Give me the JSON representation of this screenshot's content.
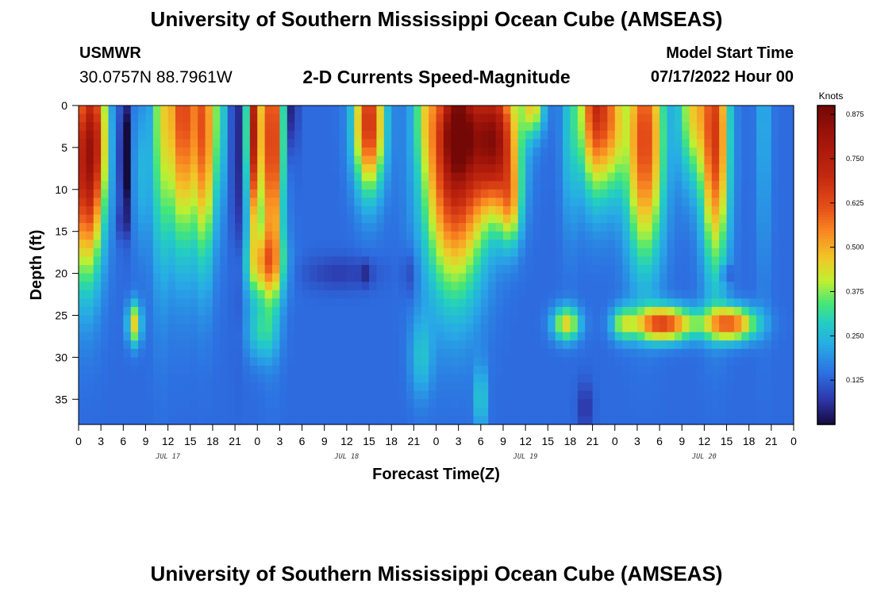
{
  "header": {
    "title": "University of Southern Mississippi Ocean Cube (AMSEAS)",
    "station": "USMWR",
    "coordinates": "30.0757N  88.7961W",
    "subtitle": "2-D Currents Speed-Magnitude",
    "model_start_label": "Model Start Time",
    "model_start_value": "07/17/2022 Hour 00"
  },
  "footer": {
    "title": "University of Southern Mississippi Ocean Cube (AMSEAS)"
  },
  "chart_data": {
    "type": "heatmap",
    "title": "2-D Currents Speed-Magnitude",
    "xlabel": "Forecast Time(Z)",
    "ylabel": "Depth (ft)",
    "xlim": [
      0,
      96
    ],
    "ylim": [
      38,
      0
    ],
    "x_ticks": [
      0,
      3,
      6,
      9,
      12,
      15,
      18,
      21,
      24,
      27,
      30,
      33,
      36,
      39,
      42,
      45,
      48,
      51,
      54,
      57,
      60,
      63,
      66,
      69,
      72,
      75,
      78,
      81,
      84,
      87,
      90,
      93,
      96
    ],
    "x_tick_labels": [
      "0",
      "3",
      "6",
      "9",
      "12",
      "15",
      "18",
      "21",
      "0",
      "3",
      "6",
      "9",
      "12",
      "15",
      "18",
      "21",
      "0",
      "3",
      "6",
      "9",
      "12",
      "15",
      "18",
      "21",
      "0",
      "3",
      "6",
      "9",
      "12",
      "15",
      "18",
      "21",
      "0"
    ],
    "y_ticks": [
      0,
      5,
      10,
      15,
      20,
      25,
      30,
      35
    ],
    "day_labels": [
      {
        "hour": 12,
        "label": "JUL 17"
      },
      {
        "hour": 36,
        "label": "JUL 18"
      },
      {
        "hour": 60,
        "label": "JUL 19"
      },
      {
        "hour": 84,
        "label": "JUL 20"
      }
    ],
    "colorbar": {
      "units": "Knots",
      "min": 0,
      "max": 0.9,
      "tick_values": [
        0.125,
        0.25,
        0.375,
        0.5,
        0.625,
        0.75,
        0.875
      ],
      "tick_labels": [
        "0.125",
        "0.250",
        "0.375",
        "0.500",
        "0.625",
        "0.750",
        "0.875"
      ]
    },
    "features": [
      {
        "t": 1,
        "d": 7,
        "st": 2.2,
        "sd": 13,
        "v": 0.6
      },
      {
        "t": 2.5,
        "d": 3,
        "st": 1.5,
        "sd": 9,
        "v": 0.22
      },
      {
        "t": 7.5,
        "d": 26,
        "st": 0.9,
        "sd": 2.5,
        "v": 0.32
      },
      {
        "t": 6.2,
        "d": 6,
        "st": 0.6,
        "sd": 7,
        "v": -0.25
      },
      {
        "t": 6,
        "d": 14,
        "st": 0.5,
        "sd": 2,
        "v": -0.12
      },
      {
        "t": 8.5,
        "d": 8,
        "st": 1.2,
        "sd": 9,
        "v": 0.1
      },
      {
        "t": 11,
        "d": 0,
        "st": 1.2,
        "sd": 20,
        "v": 0.22
      },
      {
        "t": 14,
        "d": 0,
        "st": 2.2,
        "sd": 16,
        "v": 0.5
      },
      {
        "t": 17,
        "d": 3,
        "st": 1.3,
        "sd": 15,
        "v": 0.4
      },
      {
        "t": 19,
        "d": 0,
        "st": 0.5,
        "sd": 12,
        "v": 0.32
      },
      {
        "t": 21.3,
        "d": 4,
        "st": 0.7,
        "sd": 18,
        "v": -0.1
      },
      {
        "t": 23.5,
        "d": 3,
        "st": 0.9,
        "sd": 12,
        "v": 0.6
      },
      {
        "t": 26,
        "d": 4,
        "st": 1.4,
        "sd": 16,
        "v": 0.55
      },
      {
        "t": 25,
        "d": 19,
        "st": 2.5,
        "sd": 4,
        "v": 0.28
      },
      {
        "t": 24.5,
        "d": 27,
        "st": 2,
        "sd": 3.5,
        "v": 0.14
      },
      {
        "t": 28.8,
        "d": 0,
        "st": 0.6,
        "sd": 6,
        "v": -0.15
      },
      {
        "t": 35,
        "d": 20,
        "st": 5,
        "sd": 2,
        "v": -0.06
      },
      {
        "t": 38.5,
        "d": 20,
        "st": 0.8,
        "sd": 1.5,
        "v": -0.06
      },
      {
        "t": 39,
        "d": 2,
        "st": 2,
        "sd": 8,
        "v": 0.55
      },
      {
        "t": 44.5,
        "d": 20,
        "st": 1,
        "sd": 3,
        "v": -0.06
      },
      {
        "t": 46.5,
        "d": 0,
        "st": 1.5,
        "sd": 7,
        "v": 0.12
      },
      {
        "t": 46,
        "d": 30,
        "st": 1.5,
        "sd": 5,
        "v": 0.12
      },
      {
        "t": 50.5,
        "d": 6,
        "st": 4,
        "sd": 15,
        "v": 0.62
      },
      {
        "t": 51,
        "d": 3,
        "st": 2,
        "sd": 5,
        "v": 0.25
      },
      {
        "t": 56,
        "d": 4,
        "st": 3,
        "sd": 8,
        "v": 0.62
      },
      {
        "t": 58,
        "d": 12,
        "st": 1.5,
        "sd": 5,
        "v": 0.25
      },
      {
        "t": 54,
        "d": 35,
        "st": 0.8,
        "sd": 4,
        "v": 0.16
      },
      {
        "t": 61,
        "d": 0,
        "st": 1.5,
        "sd": 3.5,
        "v": 0.3
      },
      {
        "t": 65.5,
        "d": 26,
        "st": 1.8,
        "sd": 2,
        "v": 0.32
      },
      {
        "t": 66,
        "d": 3,
        "st": 1.2,
        "sd": 12,
        "v": 0.12
      },
      {
        "t": 69.5,
        "d": 0,
        "st": 2.2,
        "sd": 10,
        "v": 0.55
      },
      {
        "t": 72,
        "d": 2,
        "st": 1.5,
        "sd": 8,
        "v": 0.2
      },
      {
        "t": 73,
        "d": 26,
        "st": 1.5,
        "sd": 2,
        "v": 0.2
      },
      {
        "t": 76,
        "d": 4,
        "st": 2.5,
        "sd": 14,
        "v": 0.5
      },
      {
        "t": 78.5,
        "d": 26,
        "st": 4,
        "sd": 2,
        "v": 0.5
      },
      {
        "t": 87.5,
        "d": 26,
        "st": 3.5,
        "sd": 2,
        "v": 0.45
      },
      {
        "t": 82.5,
        "d": 0,
        "st": 2,
        "sd": 9,
        "v": 0.3
      },
      {
        "t": 85.5,
        "d": 4,
        "st": 1.8,
        "sd": 15,
        "v": 0.5
      },
      {
        "t": 87,
        "d": 20,
        "st": 0.5,
        "sd": 0.8,
        "v": -0.18
      },
      {
        "t": 92,
        "d": 0,
        "st": 1,
        "sd": 20,
        "v": 0.1
      },
      {
        "t": 68,
        "d": 36,
        "st": 1,
        "sd": 3,
        "v": -0.08
      }
    ]
  }
}
